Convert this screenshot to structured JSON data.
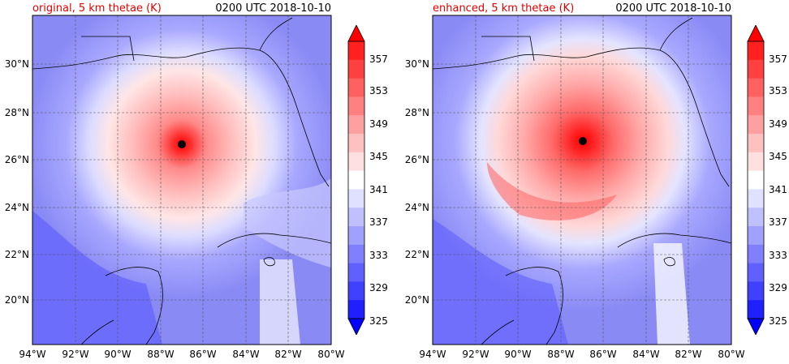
{
  "panels": [
    {
      "title_left": "original, 5 km thetae (K)",
      "title_right": "0200 UTC 2018-10-10"
    },
    {
      "title_left": "enhanced, 5 km thetae (K)",
      "title_right": "0200 UTC 2018-10-10"
    }
  ],
  "axes": {
    "x_ticks": [
      "94°W",
      "92°W",
      "90°W",
      "88°W",
      "86°W",
      "84°W",
      "82°W",
      "80°W"
    ],
    "y_ticks": [
      "30°N",
      "28°N",
      "26°N",
      "24°N",
      "22°N",
      "20°N"
    ]
  },
  "colorbar": {
    "ticks": [
      "357",
      "353",
      "349",
      "345",
      "341",
      "337",
      "333",
      "329",
      "325"
    ],
    "colors": [
      "#0000ff",
      "#2020ff",
      "#4040ff",
      "#6060ff",
      "#8080ff",
      "#a0a0ff",
      "#c0c0ff",
      "#e0e0ff",
      "#ffffff",
      "#ffe0e0",
      "#ffc0c0",
      "#ffa0a0",
      "#ff8080",
      "#ff6060",
      "#ff4040",
      "#ff2020",
      "#ff0000"
    ]
  },
  "colors": {
    "background_field": "#8a8af5",
    "title_accent": "#e00000"
  }
}
